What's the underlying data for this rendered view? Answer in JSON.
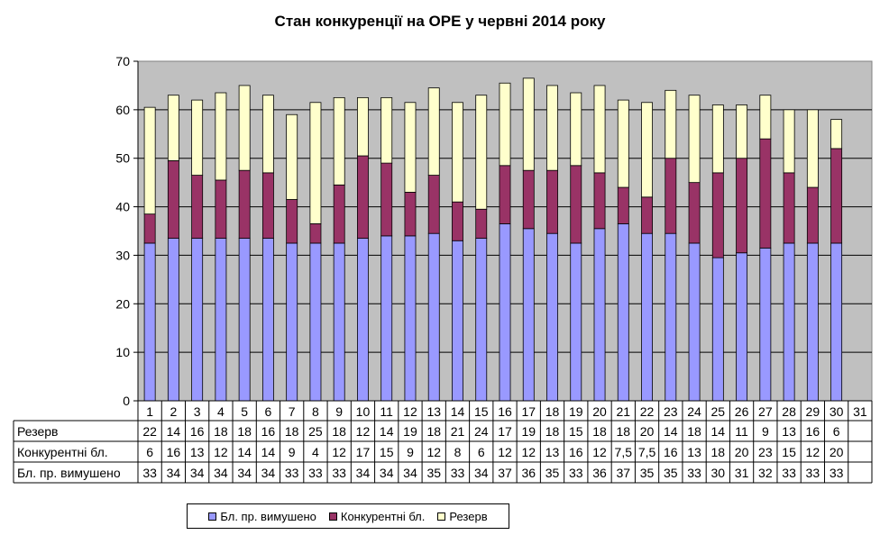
{
  "chart_data": {
    "type": "bar",
    "stacked": true,
    "title": "Стан конкуренції на ОРЕ  у червні 2014 року",
    "xlabel": "",
    "ylabel": "",
    "ylim": [
      0,
      70
    ],
    "y_ticks": [
      "0",
      "10",
      "20",
      "30",
      "40",
      "50",
      "60",
      "70"
    ],
    "grid": true,
    "legend_position": "bottom",
    "categories": [
      "1",
      "2",
      "3",
      "4",
      "5",
      "6",
      "7",
      "8",
      "9",
      "10",
      "11",
      "12",
      "13",
      "14",
      "15",
      "16",
      "17",
      "18",
      "19",
      "20",
      "21",
      "22",
      "23",
      "24",
      "25",
      "26",
      "27",
      "28",
      "29",
      "30",
      "31"
    ],
    "series": [
      {
        "name": "Бл. пр. вимушено",
        "color": "#9999ff",
        "values": [
          32.5,
          33.5,
          33.5,
          33.5,
          33.5,
          33.5,
          32.5,
          32.5,
          32.5,
          33.5,
          34,
          34,
          34.5,
          33,
          33.5,
          36.5,
          35.5,
          34.5,
          32.5,
          35.5,
          36.5,
          34.5,
          34.5,
          32.5,
          29.5,
          30.5,
          31.5,
          32.5,
          32.5,
          32.5,
          null
        ],
        "labels": [
          "33",
          "34",
          "34",
          "34",
          "34",
          "34",
          "33",
          "33",
          "33",
          "34",
          "34",
          "34",
          "35",
          "33",
          "34",
          "37",
          "36",
          "35",
          "33",
          "36",
          "37",
          "35",
          "35",
          "33",
          "30",
          "31",
          "32",
          "33",
          "33",
          "33",
          ""
        ]
      },
      {
        "name": "Конкурентні бл.",
        "color": "#993366",
        "values": [
          6,
          16,
          13,
          12,
          14,
          13.5,
          9,
          4,
          12,
          17,
          15,
          9,
          12,
          8,
          6,
          12,
          12,
          13,
          16,
          11.5,
          7.5,
          7.5,
          15.5,
          12.5,
          17.5,
          19.5,
          22.5,
          14.5,
          11.5,
          19.5,
          null
        ],
        "labels": [
          "6",
          "16",
          "13",
          "12",
          "14",
          "14",
          "9",
          "4",
          "12",
          "17",
          "15",
          "9",
          "12",
          "8",
          "6",
          "12",
          "12",
          "13",
          "16",
          "12",
          "7,5",
          "7,5",
          "16",
          "13",
          "18",
          "20",
          "23",
          "15",
          "12",
          "20",
          ""
        ]
      },
      {
        "name": "Резерв",
        "color": "#ffffcc",
        "values": [
          22,
          13.5,
          15.5,
          18,
          17.5,
          16,
          17.5,
          25,
          18,
          12,
          13.5,
          18.5,
          18,
          20.5,
          23.5,
          17,
          19,
          17.5,
          15,
          18,
          18,
          19.5,
          14,
          18,
          14,
          11,
          9,
          13,
          16,
          6,
          null
        ],
        "labels": [
          "22",
          "14",
          "16",
          "18",
          "18",
          "16",
          "18",
          "25",
          "18",
          "12",
          "14",
          "19",
          "18",
          "21",
          "24",
          "17",
          "19",
          "18",
          "15",
          "18",
          "18",
          "20",
          "14",
          "18",
          "14",
          "11",
          "9",
          "13",
          "16",
          "6",
          ""
        ]
      }
    ],
    "table_rows_order": [
      "Резерв",
      "Конкурентні бл.",
      "Бл. пр. вимушено"
    ]
  }
}
